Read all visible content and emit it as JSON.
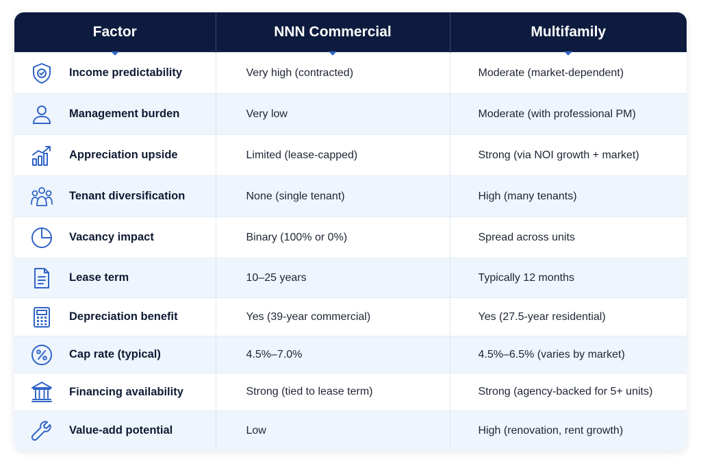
{
  "table": {
    "headers": [
      "Factor",
      "NNN Commercial",
      "Multifamily"
    ],
    "rows": [
      {
        "icon": "shield-check-icon",
        "factor": "Income predictability",
        "nnn": "Very high (contracted)",
        "multifamily": "Moderate (market-dependent)"
      },
      {
        "icon": "person-icon",
        "factor": "Management burden",
        "nnn": "Very low",
        "multifamily": "Moderate (with professional PM)"
      },
      {
        "icon": "growth-chart-icon",
        "factor": "Appreciation upside",
        "nnn": "Limited (lease-capped)",
        "multifamily": "Strong (via NOI growth + market)"
      },
      {
        "icon": "group-icon",
        "factor": "Tenant diversification",
        "nnn": "None (single tenant)",
        "multifamily": "High (many tenants)"
      },
      {
        "icon": "pie-chart-icon",
        "factor": "Vacancy impact",
        "nnn": "Binary (100% or 0%)",
        "multifamily": "Spread across units"
      },
      {
        "icon": "document-icon",
        "factor": "Lease term",
        "nnn": "10–25 years",
        "multifamily": "Typically 12 months"
      },
      {
        "icon": "calculator-icon",
        "factor": "Depreciation benefit",
        "nnn": "Yes (39-year commercial)",
        "multifamily": "Yes (27.5-year residential)"
      },
      {
        "icon": "percent-icon",
        "factor": "Cap rate (typical)",
        "nnn": "4.5%–7.0%",
        "multifamily": "4.5%–6.5% (varies by market)"
      },
      {
        "icon": "bank-icon",
        "factor": "Financing availability",
        "nnn": "Strong (tied to lease term)",
        "multifamily": "Strong (agency-backed for 5+ units)"
      },
      {
        "icon": "wrench-icon",
        "factor": "Value-add potential",
        "nnn": "Low",
        "multifamily": "High (renovation, rent growth)"
      }
    ]
  },
  "colors": {
    "header_bg": "#0d1b3e",
    "icon_blue": "#2f63c7",
    "alt_row": "#eef5fd"
  }
}
